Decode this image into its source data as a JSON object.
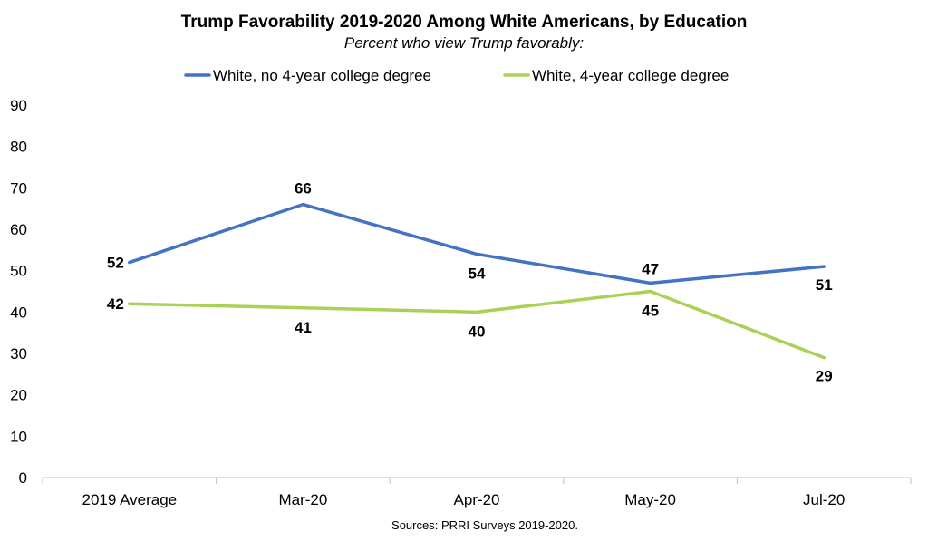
{
  "chart_data": {
    "type": "line",
    "title": "Trump Favorability 2019-2020 Among White Americans, by Education",
    "subtitle": "Percent who view Trump favorably:",
    "categories": [
      "2019 Average",
      "Mar-20",
      "Apr-20",
      "May-20",
      "Jul-20"
    ],
    "series": [
      {
        "name": "White, no 4-year college degree",
        "values": [
          52,
          66,
          54,
          47,
          51
        ],
        "color": "#4472C4"
      },
      {
        "name": "White, 4-year college degree",
        "values": [
          42,
          41,
          40,
          45,
          29
        ],
        "color": "#A9D155"
      }
    ],
    "ylim": [
      0,
      90
    ],
    "yticks": [
      0,
      10,
      20,
      30,
      40,
      50,
      60,
      70,
      80,
      90
    ],
    "grid": false,
    "legend": "top-center",
    "source": "Sources: PRRI Surveys 2019-2020."
  }
}
